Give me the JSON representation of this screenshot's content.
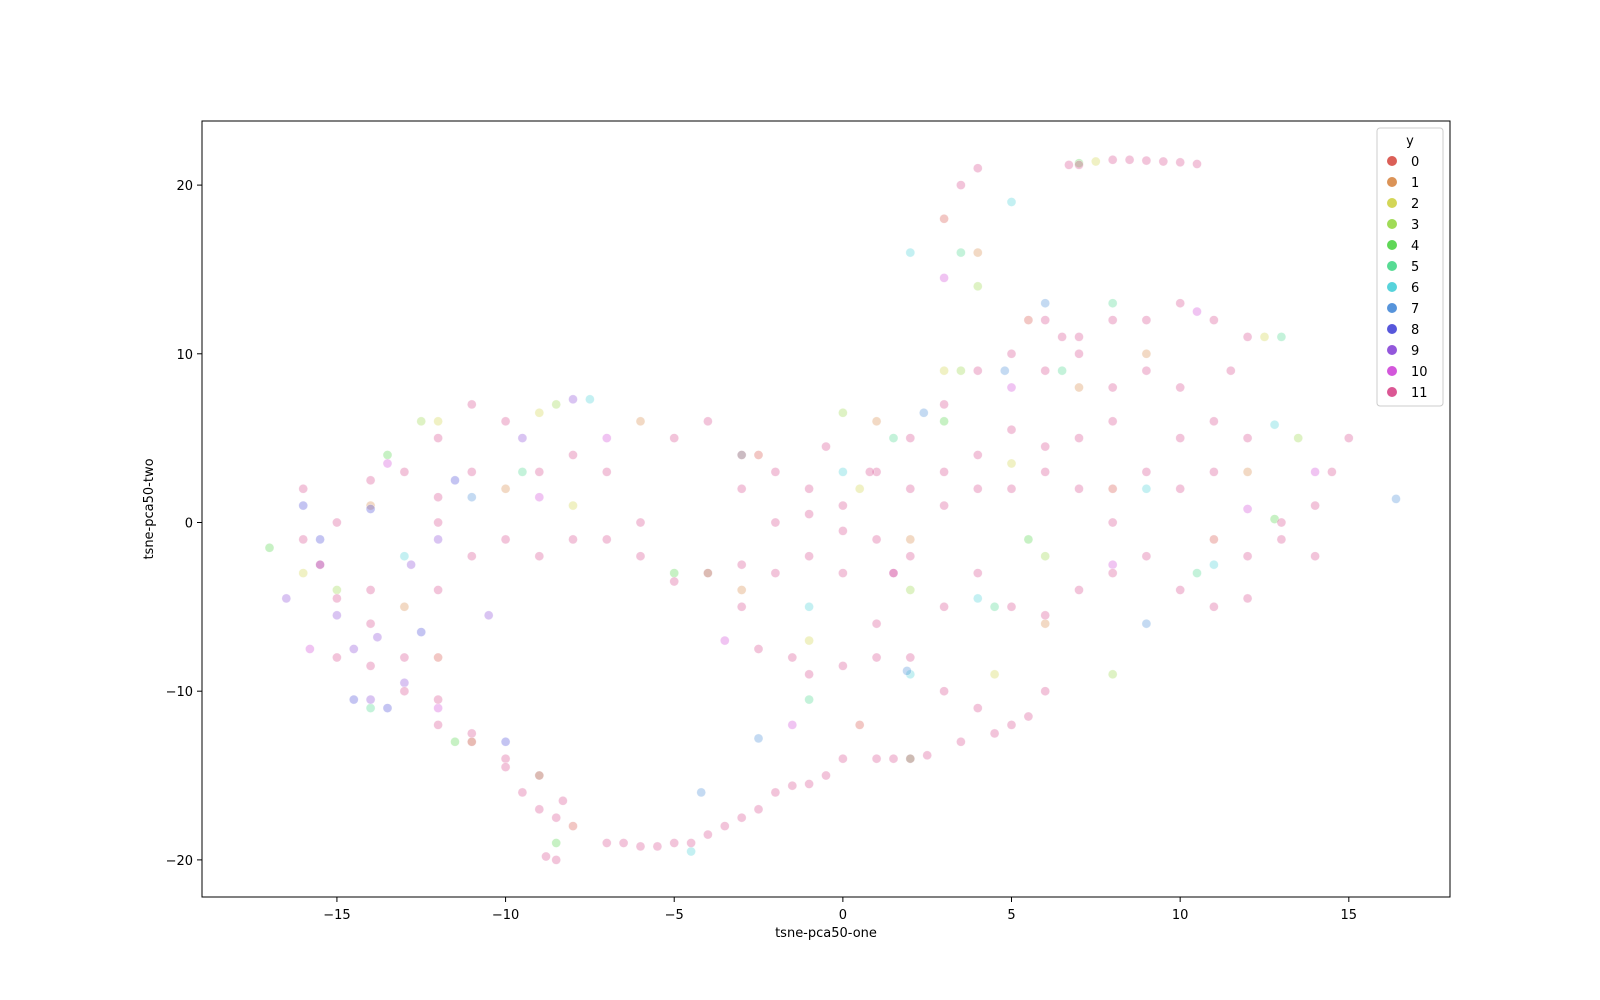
{
  "chart_data": {
    "type": "scatter",
    "title": "",
    "xlabel": "tsne-pca50-one",
    "ylabel": "tsne-pca50-two",
    "xlim": [
      -19,
      18
    ],
    "ylim": [
      -22.2,
      23.8
    ],
    "x_ticks": [
      -15,
      -10,
      -5,
      0,
      5,
      10,
      15
    ],
    "y_ticks": [
      -20,
      -10,
      0,
      10,
      20
    ],
    "x_tick_labels": [
      "−15",
      "−10",
      "−5",
      "0",
      "5",
      "10",
      "15"
    ],
    "y_tick_labels": [
      "−20",
      "−10",
      "0",
      "10",
      "20"
    ],
    "grid": false,
    "point_alpha": 0.35,
    "legend": {
      "title": "y",
      "placement": "top-right",
      "entries": [
        "0",
        "1",
        "2",
        "3",
        "4",
        "5",
        "6",
        "7",
        "8",
        "9",
        "10",
        "11"
      ]
    },
    "series": [
      {
        "name": "0",
        "color": "#db5f57",
        "points": [
          [
            -2.5,
            4
          ],
          [
            1.5,
            -3
          ],
          [
            5.5,
            12
          ],
          [
            -12,
            -8
          ],
          [
            8,
            2
          ],
          [
            3,
            18
          ],
          [
            -8,
            -18
          ],
          [
            11,
            -1
          ],
          [
            0.5,
            -12
          ]
        ]
      },
      {
        "name": "1",
        "color": "#db9357",
        "points": [
          [
            -10,
            2
          ],
          [
            -13,
            -5
          ],
          [
            4,
            16
          ],
          [
            7,
            8
          ],
          [
            -3,
            -4
          ],
          [
            12,
            3
          ],
          [
            -14,
            1
          ],
          [
            2,
            -1
          ],
          [
            6,
            -6
          ],
          [
            9,
            10
          ],
          [
            -6,
            6
          ],
          [
            1,
            6
          ]
        ]
      },
      {
        "name": "2",
        "color": "#d3d657",
        "points": [
          [
            -12,
            6
          ],
          [
            -9,
            6.5
          ],
          [
            -11,
            -13
          ],
          [
            3,
            9
          ],
          [
            7.5,
            21.4
          ],
          [
            12.5,
            11
          ],
          [
            -16,
            -3
          ],
          [
            5,
            3.5
          ],
          [
            -8,
            1
          ],
          [
            -1,
            -7
          ],
          [
            0.5,
            2
          ],
          [
            4.5,
            -9
          ]
        ]
      },
      {
        "name": "3",
        "color": "#a0db57",
        "points": [
          [
            -12.5,
            6
          ],
          [
            -8.5,
            7
          ],
          [
            -9,
            -15
          ],
          [
            4,
            14
          ],
          [
            2,
            -4
          ],
          [
            -15,
            -4
          ],
          [
            13.5,
            5
          ],
          [
            3.5,
            9
          ],
          [
            0,
            6.5
          ],
          [
            -4,
            -3
          ],
          [
            6,
            -2
          ],
          [
            8,
            -9
          ]
        ]
      },
      {
        "name": "4",
        "color": "#5fd757",
        "points": [
          [
            -17,
            -1.5
          ],
          [
            -11.5,
            -13
          ],
          [
            2,
            -14
          ],
          [
            7,
            21.3
          ],
          [
            -8.5,
            -19
          ],
          [
            3,
            6
          ],
          [
            -5,
            -3
          ],
          [
            12.8,
            0.2
          ],
          [
            5.5,
            -1
          ],
          [
            -13.5,
            4
          ]
        ]
      },
      {
        "name": "5",
        "color": "#57db94",
        "points": [
          [
            1.5,
            5
          ],
          [
            -9.5,
            3
          ],
          [
            3.5,
            16
          ],
          [
            13,
            11
          ],
          [
            -1,
            -10.5
          ],
          [
            8,
            13
          ],
          [
            -14,
            -11
          ],
          [
            4.5,
            -5
          ],
          [
            -3,
            4
          ],
          [
            6.5,
            9
          ],
          [
            10.5,
            -3
          ]
        ]
      },
      {
        "name": "6",
        "color": "#57d3db",
        "points": [
          [
            -7.5,
            7.3
          ],
          [
            2,
            16
          ],
          [
            12.8,
            5.8
          ],
          [
            5,
            19
          ],
          [
            -4.5,
            -19.5
          ],
          [
            -1,
            -5
          ],
          [
            9,
            2
          ],
          [
            4,
            -4.5
          ],
          [
            -13,
            -2
          ],
          [
            2,
            -9
          ],
          [
            11,
            -2.5
          ],
          [
            0,
            3
          ]
        ]
      },
      {
        "name": "7",
        "color": "#5794db",
        "points": [
          [
            16.4,
            1.4
          ],
          [
            -2.5,
            -12.8
          ],
          [
            1.9,
            -8.8
          ],
          [
            4.8,
            9
          ],
          [
            -4.2,
            -16
          ],
          [
            9,
            -6
          ],
          [
            2.4,
            6.5
          ],
          [
            -11,
            1.5
          ],
          [
            6,
            13
          ]
        ]
      },
      {
        "name": "8",
        "color": "#5757db",
        "points": [
          [
            -13.5,
            -11
          ],
          [
            -14.5,
            -10.5
          ],
          [
            -15.5,
            -1
          ],
          [
            -16,
            1
          ],
          [
            -12.5,
            -6.5
          ],
          [
            -11.5,
            2.5
          ],
          [
            -14,
            0.8
          ],
          [
            -10,
            -13
          ]
        ]
      },
      {
        "name": "9",
        "color": "#9357db",
        "points": [
          [
            -14.5,
            -7.5
          ],
          [
            -13,
            -9.5
          ],
          [
            -16.5,
            -4.5
          ],
          [
            -14,
            -10.5
          ],
          [
            -15,
            -5.5
          ],
          [
            -12,
            -1
          ],
          [
            -10.5,
            -5.5
          ],
          [
            -13.8,
            -6.8
          ],
          [
            -15.5,
            -2.5
          ],
          [
            -12.8,
            -2.5
          ],
          [
            -8,
            7.3
          ],
          [
            -9.5,
            5
          ]
        ]
      },
      {
        "name": "10",
        "color": "#d357db",
        "points": [
          [
            -15.8,
            -7.5
          ],
          [
            -13.5,
            3.5
          ],
          [
            -12,
            -11
          ],
          [
            -9,
            1.5
          ],
          [
            -7,
            5
          ],
          [
            3,
            14.5
          ],
          [
            10.5,
            12.5
          ],
          [
            -3.5,
            -7
          ],
          [
            5,
            8
          ],
          [
            14,
            3
          ],
          [
            -1.5,
            -12
          ],
          [
            8,
            -2.5
          ],
          [
            12,
            0.8
          ],
          [
            1.5,
            -3
          ]
        ]
      },
      {
        "name": "11",
        "color": "#db5794",
        "points": [
          [
            9.5,
            21.4
          ],
          [
            10,
            21.35
          ],
          [
            10.5,
            21.25
          ],
          [
            9,
            21.45
          ],
          [
            8.5,
            21.5
          ],
          [
            8,
            21.5
          ],
          [
            7,
            21.2
          ],
          [
            6.7,
            21.2
          ],
          [
            4,
            21
          ],
          [
            3.5,
            20
          ],
          [
            6,
            12
          ],
          [
            6.5,
            11
          ],
          [
            7,
            10
          ],
          [
            8,
            8
          ],
          [
            9,
            9
          ],
          [
            10,
            8
          ],
          [
            11.5,
            9
          ],
          [
            11,
            6
          ],
          [
            12,
            5
          ],
          [
            11,
            3
          ],
          [
            10,
            2
          ],
          [
            9,
            -2
          ],
          [
            10,
            -4
          ],
          [
            11,
            -5
          ],
          [
            12,
            -4.5
          ],
          [
            14,
            1
          ],
          [
            14.5,
            3
          ],
          [
            15,
            5
          ],
          [
            14,
            -2
          ],
          [
            13,
            -1
          ],
          [
            8,
            6
          ],
          [
            7,
            5
          ],
          [
            6,
            4.5
          ],
          [
            5,
            2
          ],
          [
            4,
            2
          ],
          [
            3,
            1
          ],
          [
            2,
            -2
          ],
          [
            1,
            -6
          ],
          [
            2,
            -8
          ],
          [
            3,
            -10
          ],
          [
            4,
            -11
          ],
          [
            5,
            -12
          ],
          [
            5.5,
            -11.5
          ],
          [
            6,
            -10
          ],
          [
            4.5,
            -12.5
          ],
          [
            3.5,
            -13
          ],
          [
            2.5,
            -13.8
          ],
          [
            2,
            -14
          ],
          [
            1.5,
            -14
          ],
          [
            1,
            -14
          ],
          [
            0,
            -14
          ],
          [
            -0.5,
            -15
          ],
          [
            -1,
            -15.5
          ],
          [
            -1.5,
            -15.6
          ],
          [
            -2,
            -16
          ],
          [
            -2.5,
            -17
          ],
          [
            -3,
            -17.5
          ],
          [
            -3.5,
            -18
          ],
          [
            -4,
            -18.5
          ],
          [
            -4.5,
            -19
          ],
          [
            -5,
            -19
          ],
          [
            -5.5,
            -19.2
          ],
          [
            -6,
            -19.2
          ],
          [
            -6.5,
            -19
          ],
          [
            -7,
            -19
          ],
          [
            -8.5,
            -20
          ],
          [
            -8.8,
            -19.8
          ],
          [
            -8.3,
            -16.5
          ],
          [
            -8.5,
            -17.5
          ],
          [
            -9,
            -15
          ],
          [
            -10,
            -14
          ],
          [
            -11,
            -12.5
          ],
          [
            -12,
            -10.5
          ],
          [
            -13,
            -8
          ],
          [
            -14,
            -6
          ],
          [
            -15,
            -4.5
          ],
          [
            -15.5,
            -2.5
          ],
          [
            -16,
            -1
          ],
          [
            -14,
            -4
          ],
          [
            -12,
            -4
          ],
          [
            -11,
            -2
          ],
          [
            -12,
            0
          ],
          [
            -10,
            -1
          ],
          [
            -9,
            -2
          ],
          [
            -8,
            -1
          ],
          [
            -7,
            -1
          ],
          [
            -6,
            0
          ],
          [
            -5,
            5
          ],
          [
            -4,
            6
          ],
          [
            -3,
            4
          ],
          [
            -2,
            3
          ],
          [
            -1,
            2
          ],
          [
            0,
            1
          ],
          [
            1,
            3
          ],
          [
            2,
            5
          ],
          [
            3,
            7
          ],
          [
            4,
            9
          ],
          [
            5,
            10
          ],
          [
            6,
            9
          ],
          [
            7,
            11
          ],
          [
            8,
            12
          ],
          [
            9,
            12
          ],
          [
            10,
            13
          ],
          [
            11,
            12
          ],
          [
            12,
            11
          ],
          [
            -6,
            -2
          ],
          [
            -5,
            -3.5
          ],
          [
            -4,
            -3
          ],
          [
            -3,
            -2.5
          ],
          [
            -2,
            -3
          ],
          [
            -1,
            -2
          ],
          [
            0,
            -3
          ],
          [
            1,
            -1
          ],
          [
            -0.5,
            4.5
          ],
          [
            0.8,
            3
          ],
          [
            -3,
            -5
          ],
          [
            -2.5,
            -7.5
          ],
          [
            -1.5,
            -8
          ],
          [
            -1,
            -9
          ],
          [
            0,
            -8.5
          ],
          [
            1,
            -8
          ],
          [
            3,
            -5
          ],
          [
            4,
            -3
          ],
          [
            5,
            -5
          ],
          [
            6,
            -5.5
          ],
          [
            7,
            -4
          ],
          [
            8,
            -3
          ],
          [
            6,
            3
          ],
          [
            7,
            2
          ],
          [
            8,
            0
          ],
          [
            9,
            3
          ],
          [
            10,
            5
          ],
          [
            12,
            -2
          ],
          [
            13,
            0
          ],
          [
            -11,
            3
          ],
          [
            -12,
            1.5
          ],
          [
            -13,
            3
          ],
          [
            -14,
            2.5
          ],
          [
            -15,
            0
          ],
          [
            -16,
            2
          ],
          [
            -10,
            6
          ],
          [
            -11,
            7
          ],
          [
            -12,
            5
          ],
          [
            -9,
            3
          ],
          [
            -8,
            4
          ],
          [
            -7,
            3
          ],
          [
            -15,
            -8
          ],
          [
            -14,
            -8.5
          ],
          [
            -13,
            -10
          ],
          [
            -12,
            -12
          ],
          [
            -11,
            -13
          ],
          [
            -10,
            -14.5
          ],
          [
            -9.5,
            -16
          ],
          [
            -9,
            -17
          ],
          [
            2,
            2
          ],
          [
            3,
            3
          ],
          [
            4,
            4
          ],
          [
            5,
            5.5
          ],
          [
            -3,
            2
          ],
          [
            -2,
            0
          ],
          [
            -1,
            0.5
          ],
          [
            0,
            -0.5
          ]
        ]
      }
    ]
  }
}
